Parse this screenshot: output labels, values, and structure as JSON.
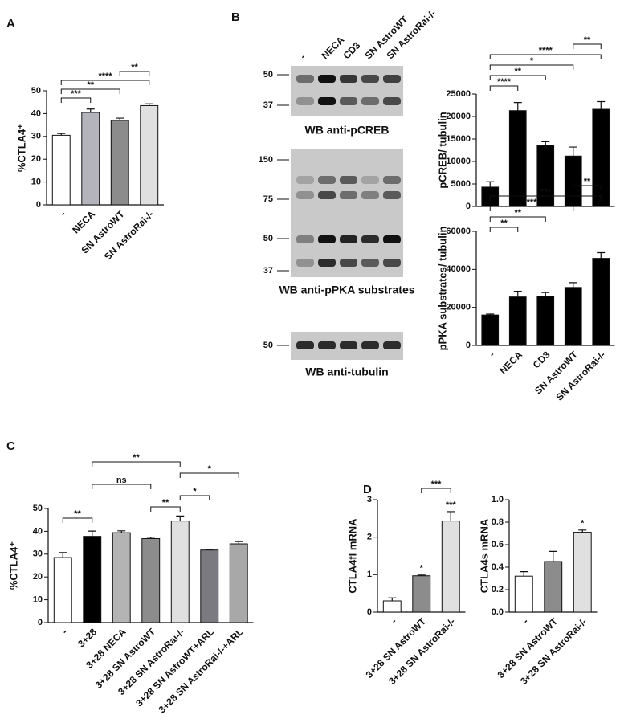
{
  "panels": [
    "A",
    "B",
    "C",
    "D"
  ],
  "blots": {
    "lanes": [
      "-",
      "NECA",
      "CD3",
      "SN AstroWT",
      "SN AstroRai-/-"
    ],
    "panels": [
      {
        "caption": "WB anti-pCREB",
        "markers": [
          50,
          37
        ]
      },
      {
        "caption": "WB anti-pPKA substrates",
        "markers": [
          150,
          75,
          50,
          37
        ]
      },
      {
        "caption": "WB anti-tubulin",
        "markers": [
          50
        ]
      }
    ]
  },
  "chart_data": [
    {
      "type": "bar",
      "ylabel": "%CTLA4⁺",
      "categories": [
        "-",
        "NECA",
        "SN AstroWT",
        "SN AstroRai-/-"
      ],
      "values": [
        30.5,
        40.5,
        37,
        43.5
      ],
      "errors": [
        0.8,
        1.5,
        1,
        0.8
      ],
      "colors": [
        "#ffffff",
        "#b4b4bc",
        "#8c8c8c",
        "#e0e0e0"
      ],
      "ylim": [
        0,
        50
      ],
      "yticks": [
        0,
        10,
        20,
        30,
        40,
        50
      ],
      "comparisons": [
        {
          "pair": [
            0,
            1
          ],
          "label": "***"
        },
        {
          "pair": [
            0,
            2
          ],
          "label": "**"
        },
        {
          "pair": [
            0,
            3
          ],
          "label": "****"
        },
        {
          "pair": [
            2,
            3
          ],
          "label": "**"
        }
      ]
    },
    {
      "type": "bar",
      "ylabel": "pCREB/ tubulin",
      "values": [
        4300,
        21300,
        13500,
        11200,
        21600
      ],
      "errors": [
        1200,
        1800,
        900,
        2000,
        1700
      ],
      "color": "#000000",
      "ylim": [
        0,
        25000
      ],
      "yticks": [
        0,
        5000,
        10000,
        15000,
        20000,
        25000
      ],
      "comparisons": [
        {
          "pair": [
            0,
            1
          ],
          "label": "****"
        },
        {
          "pair": [
            0,
            2
          ],
          "label": "**"
        },
        {
          "pair": [
            0,
            3
          ],
          "label": "*"
        },
        {
          "pair": [
            0,
            4
          ],
          "label": "****"
        },
        {
          "pair": [
            3,
            4
          ],
          "label": "**"
        }
      ]
    },
    {
      "type": "bar",
      "ylabel": "pPKA substrates/ tubulin",
      "categories": [
        "-",
        "NECA",
        "CD3",
        "SN AstroWT",
        "SN AstroRai-/-"
      ],
      "values": [
        16000,
        25500,
        25800,
        30500,
        45800
      ],
      "errors": [
        500,
        3000,
        2000,
        2500,
        3000
      ],
      "color": "#000000",
      "ylim": [
        0,
        60000
      ],
      "yticks": [
        0,
        20000,
        40000,
        60000
      ],
      "comparisons": [
        {
          "pair": [
            0,
            1
          ],
          "label": "**"
        },
        {
          "pair": [
            0,
            2
          ],
          "label": "**"
        },
        {
          "pair": [
            0,
            3
          ],
          "label": "***"
        },
        {
          "pair": [
            0,
            4
          ],
          "label": "***"
        },
        {
          "pair": [
            3,
            4
          ],
          "label": "**"
        }
      ]
    },
    {
      "type": "bar",
      "ylabel": "%CTLA4⁺",
      "categories": [
        "-",
        "3+28",
        "3+28 NECA",
        "3+28 SN AstroWT",
        "3+28 SN AstroRai-/-",
        "3+28 SN AstroWT+ARL",
        "3+28 SN AstroRai-/-+ARL"
      ],
      "values": [
        28.5,
        37.8,
        39.4,
        36.8,
        44.5,
        31.8,
        34.5
      ],
      "errors": [
        2.2,
        2.3,
        0.8,
        0.6,
        2.2,
        0.3,
        1
      ],
      "colors": [
        "#ffffff",
        "#000000",
        "#b4b4b4",
        "#8c8c8c",
        "#e0e0e0",
        "#7a7a80",
        "#a8a8a8"
      ],
      "ylim": [
        0,
        50
      ],
      "yticks": [
        0,
        10,
        20,
        30,
        40,
        50
      ],
      "comparisons": [
        {
          "pair": [
            0,
            1
          ],
          "label": "**"
        },
        {
          "pair": [
            3,
            4
          ],
          "label": "**"
        },
        {
          "pair": [
            4,
            5
          ],
          "label": "*"
        },
        {
          "pair": [
            1,
            3
          ],
          "label": "ns"
        },
        {
          "pair": [
            4,
            6
          ],
          "label": "*"
        },
        {
          "pair": [
            1,
            4
          ],
          "label": "**"
        }
      ]
    },
    {
      "type": "bar",
      "ylabel": "CTLA4fl mRNA",
      "categories": [
        "-",
        "3+28 SN AstroWT",
        "3+28 SN AstroRai-/-"
      ],
      "values": [
        0.3,
        0.97,
        2.43
      ],
      "errors": [
        0.08,
        0.02,
        0.25
      ],
      "colors": [
        "#ffffff",
        "#8c8c8c",
        "#e0e0e0"
      ],
      "ylim": [
        0,
        3
      ],
      "yticks": [
        0,
        1,
        2,
        3
      ],
      "stars": [
        {
          "index": 1,
          "label": "*"
        },
        {
          "index": 2,
          "label": "***"
        }
      ],
      "comparisons": [
        {
          "pair": [
            1,
            2
          ],
          "label": "***"
        }
      ]
    },
    {
      "type": "bar",
      "ylabel": "CTLA4s mRNA",
      "categories": [
        "-",
        "3+28 SN AstroWT",
        "3+28 SN AstroRai-/-"
      ],
      "values": [
        0.32,
        0.45,
        0.71
      ],
      "errors": [
        0.04,
        0.09,
        0.02
      ],
      "colors": [
        "#ffffff",
        "#8c8c8c",
        "#e0e0e0"
      ],
      "ylim": [
        0,
        1
      ],
      "yticks": [
        {
          "value": 0,
          "label": "0.0"
        },
        0.2,
        0.4,
        0.6,
        0.8,
        {
          "value": 1,
          "label": "1.0"
        }
      ],
      "stars": [
        {
          "index": 2,
          "label": "*"
        }
      ]
    }
  ]
}
